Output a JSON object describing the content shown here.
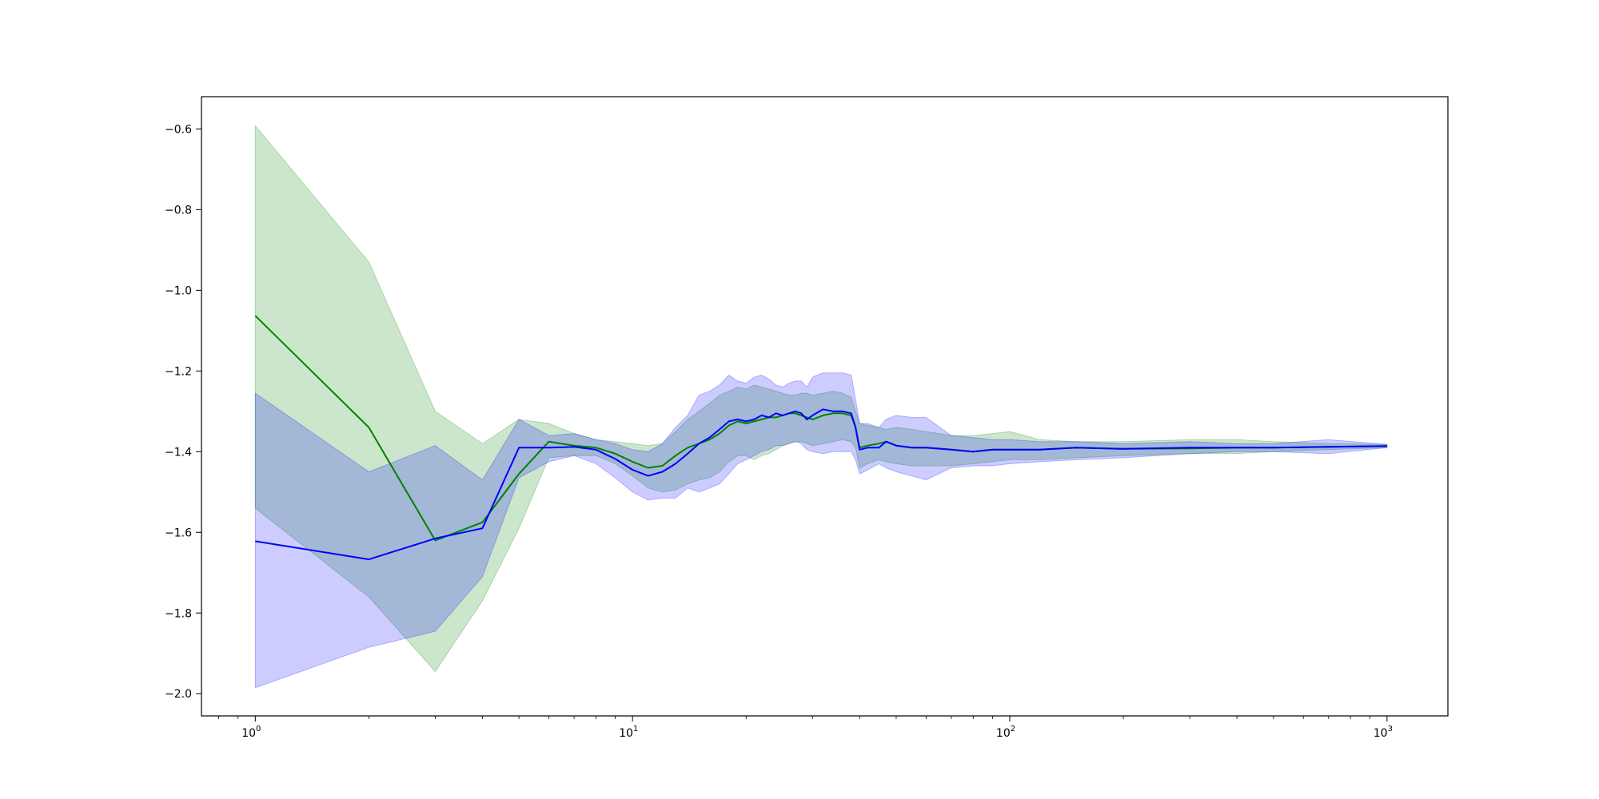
{
  "chart_data": {
    "type": "line",
    "title": "",
    "xlabel": "",
    "ylabel": "",
    "x_scale": "log",
    "xlim": [
      0.72,
      1450
    ],
    "ylim": [
      -2.055,
      -0.52
    ],
    "grid": false,
    "legend": "none",
    "x_ticks": [
      {
        "value": 1,
        "base": "10",
        "exp": "0"
      },
      {
        "value": 10,
        "base": "10",
        "exp": "1"
      },
      {
        "value": 100,
        "base": "10",
        "exp": "2"
      },
      {
        "value": 1000,
        "base": "10",
        "exp": "3"
      }
    ],
    "y_ticks": [
      {
        "value": -2.0,
        "label": "−2.0"
      },
      {
        "value": -1.8,
        "label": "−1.8"
      },
      {
        "value": -1.6,
        "label": "−1.6"
      },
      {
        "value": -1.4,
        "label": "−1.4"
      },
      {
        "value": -1.2,
        "label": "−1.2"
      },
      {
        "value": -1.0,
        "label": "−1.0"
      },
      {
        "value": -0.8,
        "label": "−0.8"
      },
      {
        "value": -0.6,
        "label": "−0.6"
      }
    ],
    "series": [
      {
        "color": "#008000",
        "band_color": "#008000",
        "x": [
          1,
          2,
          3,
          4,
          5,
          6,
          7,
          8,
          9,
          10,
          11,
          12,
          13,
          14,
          15,
          16,
          17,
          18,
          19,
          20,
          21,
          22,
          23,
          24,
          25,
          26,
          27,
          28,
          29,
          30,
          32,
          34,
          36,
          38,
          39,
          40,
          42,
          45,
          47,
          50,
          55,
          60,
          70,
          80,
          90,
          100,
          120,
          150,
          200,
          300,
          400,
          500,
          700,
          1000
        ],
        "mean": [
          -1.063,
          -1.34,
          -1.62,
          -1.575,
          -1.455,
          -1.375,
          -1.385,
          -1.39,
          -1.405,
          -1.425,
          -1.44,
          -1.435,
          -1.41,
          -1.39,
          -1.38,
          -1.37,
          -1.355,
          -1.335,
          -1.325,
          -1.33,
          -1.325,
          -1.32,
          -1.315,
          -1.315,
          -1.31,
          -1.305,
          -1.305,
          -1.31,
          -1.315,
          -1.32,
          -1.31,
          -1.305,
          -1.305,
          -1.31,
          -1.34,
          -1.39,
          -1.385,
          -1.38,
          -1.375,
          -1.385,
          -1.39,
          -1.39,
          -1.395,
          -1.4,
          -1.395,
          -1.395,
          -1.395,
          -1.39,
          -1.393,
          -1.392,
          -1.39,
          -1.39,
          -1.388,
          -1.386
        ],
        "upper": [
          -0.592,
          -0.93,
          -1.3,
          -1.38,
          -1.32,
          -1.33,
          -1.355,
          -1.37,
          -1.375,
          -1.38,
          -1.385,
          -1.38,
          -1.35,
          -1.32,
          -1.3,
          -1.28,
          -1.26,
          -1.25,
          -1.24,
          -1.245,
          -1.235,
          -1.24,
          -1.245,
          -1.25,
          -1.255,
          -1.26,
          -1.26,
          -1.255,
          -1.255,
          -1.26,
          -1.255,
          -1.25,
          -1.255,
          -1.265,
          -1.3,
          -1.33,
          -1.335,
          -1.34,
          -1.345,
          -1.34,
          -1.345,
          -1.35,
          -1.36,
          -1.36,
          -1.355,
          -1.35,
          -1.37,
          -1.375,
          -1.375,
          -1.37,
          -1.37,
          -1.375,
          -1.38,
          -1.382
        ],
        "lower": [
          -1.54,
          -1.76,
          -1.945,
          -1.77,
          -1.59,
          -1.415,
          -1.41,
          -1.41,
          -1.43,
          -1.46,
          -1.49,
          -1.5,
          -1.495,
          -1.48,
          -1.47,
          -1.465,
          -1.45,
          -1.425,
          -1.41,
          -1.41,
          -1.42,
          -1.41,
          -1.405,
          -1.395,
          -1.385,
          -1.38,
          -1.375,
          -1.375,
          -1.38,
          -1.385,
          -1.38,
          -1.375,
          -1.37,
          -1.375,
          -1.39,
          -1.44,
          -1.43,
          -1.42,
          -1.425,
          -1.43,
          -1.435,
          -1.435,
          -1.435,
          -1.43,
          -1.425,
          -1.42,
          -1.42,
          -1.415,
          -1.41,
          -1.405,
          -1.405,
          -1.4,
          -1.395,
          -1.39
        ]
      },
      {
        "color": "#0000ff",
        "band_color": "#0000ff",
        "x": [
          1,
          2,
          3,
          4,
          5,
          6,
          7,
          8,
          9,
          10,
          11,
          12,
          13,
          14,
          15,
          16,
          17,
          18,
          19,
          20,
          21,
          22,
          23,
          24,
          25,
          26,
          27,
          28,
          29,
          30,
          32,
          34,
          36,
          38,
          39,
          40,
          42,
          45,
          47,
          50,
          55,
          60,
          70,
          80,
          90,
          100,
          120,
          150,
          200,
          300,
          400,
          500,
          700,
          1000
        ],
        "mean": [
          -1.622,
          -1.667,
          -1.615,
          -1.59,
          -1.39,
          -1.39,
          -1.388,
          -1.395,
          -1.418,
          -1.445,
          -1.46,
          -1.45,
          -1.43,
          -1.405,
          -1.38,
          -1.365,
          -1.345,
          -1.325,
          -1.32,
          -1.325,
          -1.32,
          -1.31,
          -1.315,
          -1.305,
          -1.31,
          -1.305,
          -1.3,
          -1.305,
          -1.32,
          -1.31,
          -1.295,
          -1.3,
          -1.3,
          -1.305,
          -1.34,
          -1.395,
          -1.39,
          -1.39,
          -1.375,
          -1.385,
          -1.39,
          -1.39,
          -1.395,
          -1.4,
          -1.395,
          -1.395,
          -1.395,
          -1.39,
          -1.393,
          -1.39,
          -1.39,
          -1.39,
          -1.388,
          -1.386
        ],
        "upper": [
          -1.255,
          -1.45,
          -1.385,
          -1.47,
          -1.32,
          -1.36,
          -1.355,
          -1.37,
          -1.38,
          -1.395,
          -1.4,
          -1.38,
          -1.34,
          -1.31,
          -1.26,
          -1.25,
          -1.235,
          -1.21,
          -1.225,
          -1.23,
          -1.215,
          -1.21,
          -1.22,
          -1.235,
          -1.24,
          -1.23,
          -1.225,
          -1.225,
          -1.24,
          -1.215,
          -1.205,
          -1.205,
          -1.205,
          -1.21,
          -1.27,
          -1.33,
          -1.33,
          -1.34,
          -1.32,
          -1.31,
          -1.315,
          -1.315,
          -1.36,
          -1.365,
          -1.37,
          -1.37,
          -1.375,
          -1.375,
          -1.38,
          -1.375,
          -1.38,
          -1.38,
          -1.37,
          -1.382
        ],
        "lower": [
          -1.985,
          -1.885,
          -1.845,
          -1.71,
          -1.465,
          -1.425,
          -1.41,
          -1.43,
          -1.465,
          -1.5,
          -1.52,
          -1.515,
          -1.515,
          -1.49,
          -1.5,
          -1.49,
          -1.48,
          -1.455,
          -1.43,
          -1.42,
          -1.41,
          -1.4,
          -1.395,
          -1.385,
          -1.385,
          -1.38,
          -1.375,
          -1.38,
          -1.395,
          -1.4,
          -1.405,
          -1.4,
          -1.4,
          -1.4,
          -1.42,
          -1.455,
          -1.445,
          -1.43,
          -1.44,
          -1.45,
          -1.46,
          -1.47,
          -1.44,
          -1.435,
          -1.435,
          -1.43,
          -1.425,
          -1.42,
          -1.415,
          -1.405,
          -1.4,
          -1.4,
          -1.405,
          -1.39
        ]
      }
    ]
  }
}
